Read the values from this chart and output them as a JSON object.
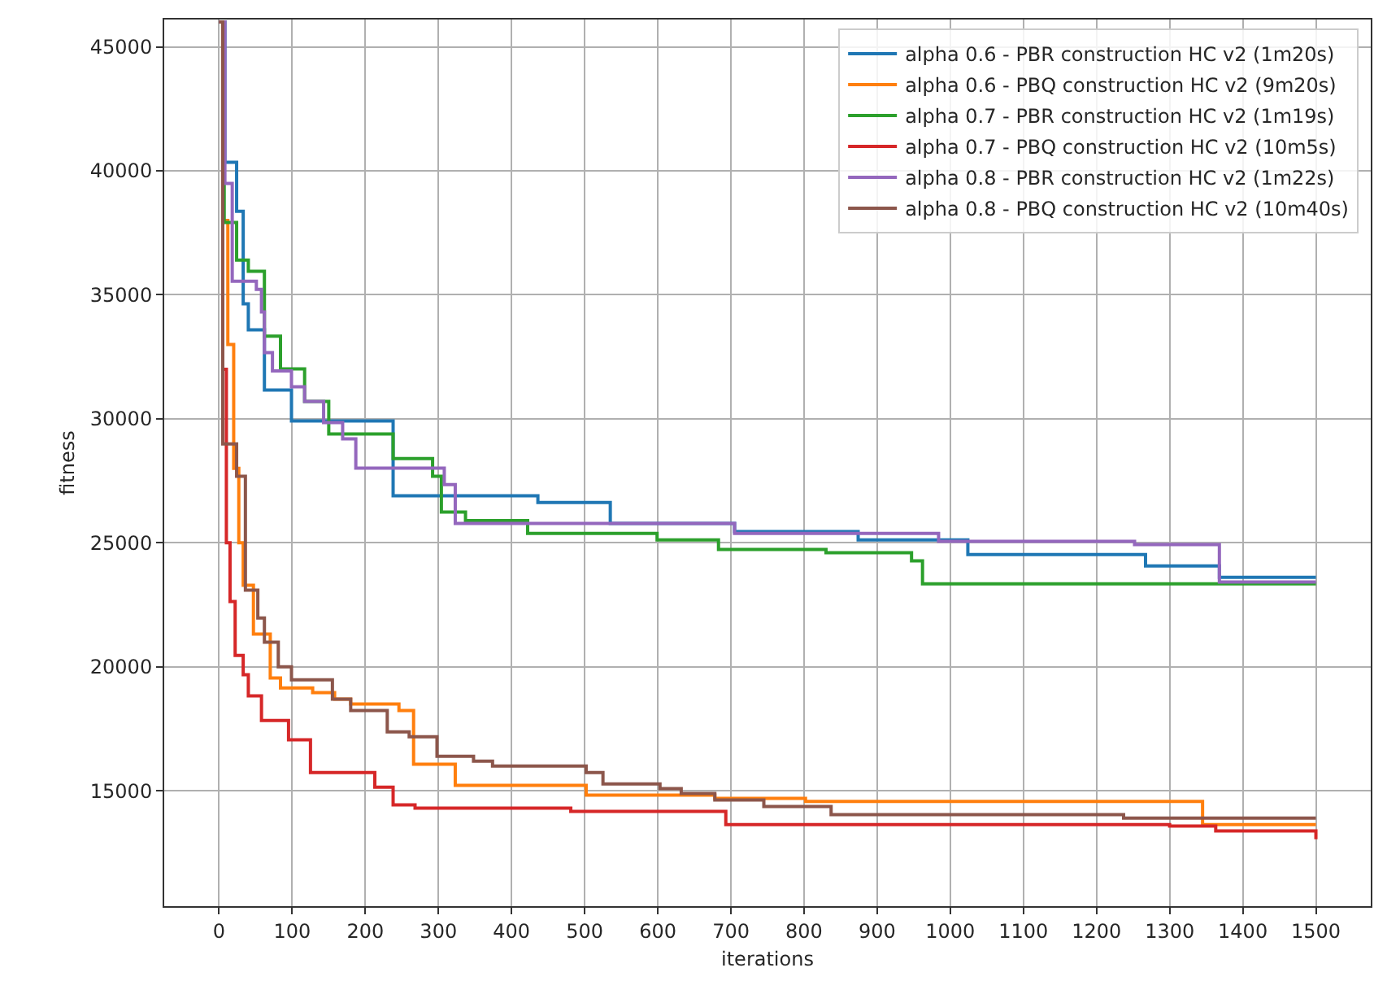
{
  "chart_data": {
    "type": "step",
    "xlabel": "iterations",
    "ylabel": "fitness",
    "xlim": [
      -75,
      1575
    ],
    "ylim": [
      10350,
      46100
    ],
    "xticks": [
      0,
      100,
      200,
      300,
      400,
      500,
      600,
      700,
      800,
      900,
      1000,
      1100,
      1200,
      1300,
      1400,
      1500
    ],
    "yticks": [
      15000,
      20000,
      25000,
      30000,
      35000,
      40000,
      45000
    ],
    "grid": true,
    "legend": "top right",
    "line_style": "solid",
    "marker": "none",
    "series": [
      {
        "name": "alpha 0.6 - PBR construction HC v2 (1m20s)",
        "color": "#1f77b4",
        "x": [
          0,
          8,
          15,
          24,
          33,
          40,
          62,
          99,
          238,
          436,
          535,
          705,
          874,
          1024,
          1267,
          1368,
          1500
        ],
        "values": [
          46000,
          40340,
          40340,
          38370,
          34640,
          33590,
          31160,
          29910,
          26900,
          26630,
          25780,
          25450,
          25120,
          24530,
          24070,
          23610,
          23610
        ]
      },
      {
        "name": "alpha 0.6 - PBQ construction HC v2 (9m20s)",
        "color": "#ff7f0e",
        "x": [
          0,
          5,
          12,
          20,
          27,
          33,
          47,
          70,
          84,
          128,
          158,
          180,
          246,
          266,
          323,
          502,
          678,
          802,
          1345,
          1500
        ],
        "values": [
          46000,
          38000,
          33000,
          28000,
          25000,
          23290,
          21320,
          19550,
          19150,
          18960,
          18700,
          18500,
          18240,
          16070,
          15220,
          14830,
          14700,
          14570,
          13640,
          13640
        ]
      },
      {
        "name": "alpha 0.7 - PBR construction HC v2 (1m19s)",
        "color": "#2ca02c",
        "x": [
          0,
          7,
          24,
          40,
          62,
          84,
          117,
          150,
          238,
          292,
          304,
          337,
          422,
          599,
          683,
          830,
          947,
          962,
          1500
        ],
        "values": [
          46000,
          37920,
          36400,
          35950,
          33330,
          32010,
          30700,
          29390,
          28400,
          27680,
          26240,
          25900,
          25380,
          25120,
          24730,
          24600,
          24270,
          23350,
          23350
        ]
      },
      {
        "name": "alpha 0.7 - PBQ construction HC v2 (10m5s)",
        "color": "#d62728",
        "x": [
          0,
          5,
          10,
          15,
          22,
          33,
          40,
          58,
          95,
          125,
          213,
          238,
          268,
          481,
          693,
          1300,
          1363,
          1500
        ],
        "values": [
          46000,
          32000,
          25000,
          22630,
          20460,
          19680,
          18830,
          17840,
          17060,
          15740,
          15150,
          14430,
          14300,
          14170,
          13640,
          13580,
          13380,
          13050
        ]
      },
      {
        "name": "alpha 0.8 - PBR construction HC v2 (1m22s)",
        "color": "#9467bd",
        "x": [
          0,
          8,
          18,
          51,
          58,
          62,
          73,
          99,
          117,
          143,
          169,
          187,
          308,
          323,
          705,
          984,
          1252,
          1368,
          1500
        ],
        "values": [
          46000,
          39490,
          35550,
          35220,
          34310,
          32670,
          31930,
          31290,
          30700,
          29850,
          29190,
          28010,
          27350,
          25780,
          25380,
          25060,
          24930,
          23420,
          23420
        ]
      },
      {
        "name": "alpha 0.8 - PBQ construction HC v2 (10m40s)",
        "color": "#8c564b",
        "x": [
          0,
          5,
          24,
          36,
          53,
          62,
          81,
          99,
          155,
          180,
          230,
          260,
          298,
          348,
          374,
          502,
          525,
          603,
          632,
          678,
          745,
          837,
          1237,
          1500
        ],
        "values": [
          46000,
          28990,
          27680,
          23090,
          21970,
          20990,
          20000,
          19480,
          18700,
          18240,
          17380,
          17180,
          16390,
          16200,
          16000,
          15740,
          15280,
          15090,
          14890,
          14630,
          14370,
          14040,
          13900,
          13900
        ]
      }
    ]
  }
}
